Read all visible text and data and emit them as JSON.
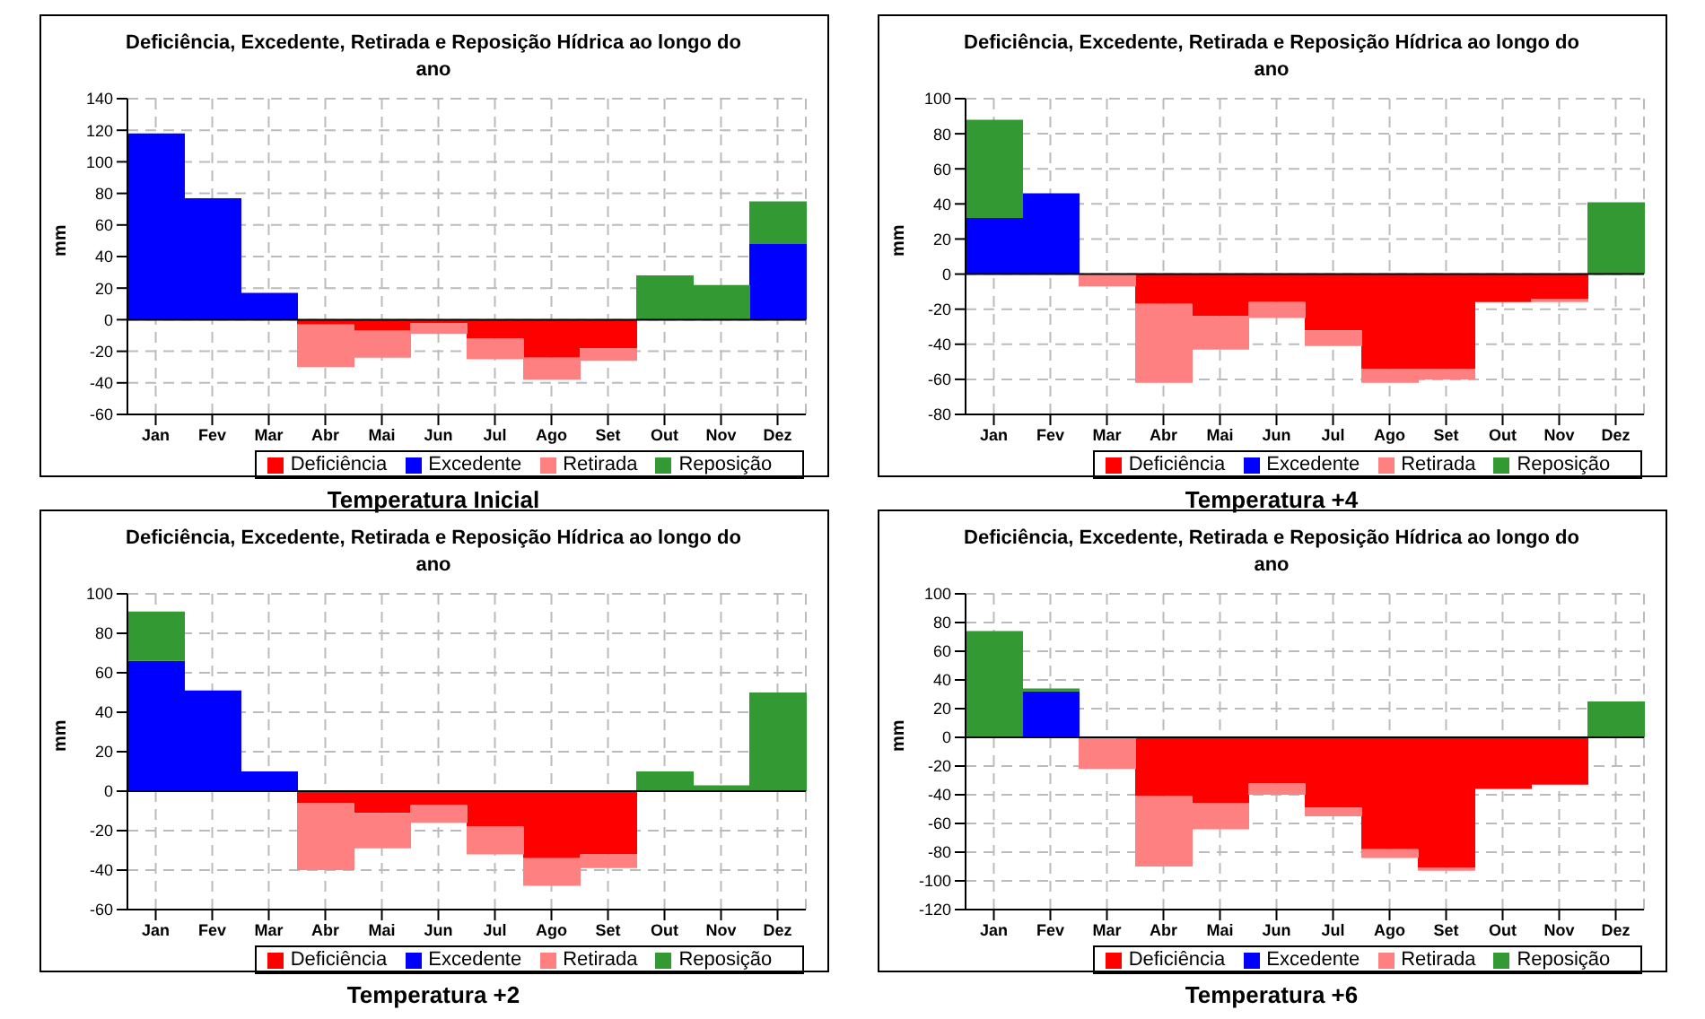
{
  "chart_data": [
    {
      "type": "bar",
      "stacked": true,
      "title": "Deficiência, Excedente, Retirada e Reposição Hídrica ao longo do ano",
      "ylabel": "mm",
      "categories": [
        "Jan",
        "Fev",
        "Mar",
        "Abr",
        "Mai",
        "Jun",
        "Jul",
        "Ago",
        "Set",
        "Out",
        "Nov",
        "Dez"
      ],
      "series": [
        {
          "name": "Deficiência",
          "color": "#ff0000",
          "values": [
            null,
            null,
            null,
            -3,
            -7,
            -2,
            -12,
            -24,
            -18,
            null,
            null,
            null
          ]
        },
        {
          "name": "Excedente",
          "color": "#0000ff",
          "values": [
            118,
            77,
            17,
            null,
            null,
            null,
            null,
            null,
            null,
            null,
            null,
            48
          ]
        },
        {
          "name": "Retirada",
          "color": "#ff8080",
          "values": [
            null,
            null,
            null,
            -27,
            -17,
            -7,
            -13,
            -14,
            -8,
            null,
            null,
            null
          ]
        },
        {
          "name": "Reposição",
          "color": "#339933",
          "values": [
            null,
            null,
            null,
            null,
            null,
            null,
            null,
            null,
            null,
            28,
            22,
            27
          ]
        }
      ],
      "ylim": [
        -60,
        140
      ],
      "yticks": [
        -60,
        -40,
        -20,
        0,
        20,
        40,
        60,
        80,
        100,
        120,
        140
      ],
      "grid": true,
      "legend": "bottom",
      "annotations": [
        "Temperatura Inicial"
      ]
    },
    {
      "type": "bar",
      "stacked": true,
      "title": "Deficiência, Excedente, Retirada e Reposição Hídrica ao longo do ano",
      "ylabel": "mm",
      "categories": [
        "Jan",
        "Fev",
        "Mar",
        "Abr",
        "Mai",
        "Jun",
        "Jul",
        "Ago",
        "Set",
        "Out",
        "Nov",
        "Dez"
      ],
      "series": [
        {
          "name": "Deficiência",
          "color": "#ff0000",
          "values": [
            null,
            null,
            null,
            -17,
            -24,
            -16,
            -32,
            -54,
            -54,
            -16,
            -14,
            null
          ]
        },
        {
          "name": "Excedente",
          "color": "#0000ff",
          "values": [
            32,
            46,
            null,
            null,
            null,
            null,
            null,
            null,
            null,
            null,
            null,
            null
          ]
        },
        {
          "name": "Retirada",
          "color": "#ff8080",
          "values": [
            null,
            null,
            -7,
            -45,
            -19,
            -9,
            -9,
            -8,
            -6,
            null,
            -2,
            null
          ]
        },
        {
          "name": "Reposição",
          "color": "#339933",
          "values": [
            56,
            null,
            null,
            null,
            null,
            null,
            null,
            null,
            null,
            null,
            null,
            41
          ]
        }
      ],
      "ylim": [
        -80,
        100
      ],
      "yticks": [
        -80,
        -60,
        -40,
        -20,
        0,
        20,
        40,
        60,
        80,
        100
      ],
      "grid": true,
      "legend": "bottom",
      "annotations": [
        "Temperatura +4"
      ]
    },
    {
      "type": "bar",
      "stacked": true,
      "title": "Deficiência, Excedente, Retirada e Reposição Hídrica ao longo do ano",
      "ylabel": "mm",
      "categories": [
        "Jan",
        "Fev",
        "Mar",
        "Abr",
        "Mai",
        "Jun",
        "Jul",
        "Ago",
        "Set",
        "Out",
        "Nov",
        "Dez"
      ],
      "series": [
        {
          "name": "Deficiência",
          "color": "#ff0000",
          "values": [
            null,
            null,
            null,
            -6,
            -11,
            -7,
            -18,
            -34,
            -32,
            null,
            null,
            null
          ]
        },
        {
          "name": "Excedente",
          "color": "#0000ff",
          "values": [
            66,
            51,
            10,
            null,
            null,
            null,
            null,
            null,
            null,
            null,
            null,
            null
          ]
        },
        {
          "name": "Retirada",
          "color": "#ff8080",
          "values": [
            null,
            null,
            null,
            -34,
            -18,
            -9,
            -14,
            -14,
            -7,
            null,
            null,
            null
          ]
        },
        {
          "name": "Reposição",
          "color": "#339933",
          "values": [
            25,
            null,
            null,
            null,
            null,
            null,
            null,
            null,
            null,
            10,
            3,
            50
          ]
        }
      ],
      "ylim": [
        -60,
        100
      ],
      "yticks": [
        -60,
        -40,
        -20,
        0,
        20,
        40,
        60,
        80,
        100
      ],
      "grid": true,
      "legend": "bottom",
      "annotations": [
        "Temperatura +2"
      ]
    },
    {
      "type": "bar",
      "stacked": true,
      "title": "Deficiência, Excedente, Retirada e Reposição Hídrica ao longo do ano",
      "ylabel": "mm",
      "categories": [
        "Jan",
        "Fev",
        "Mar",
        "Abr",
        "Mai",
        "Jun",
        "Jul",
        "Ago",
        "Set",
        "Out",
        "Nov",
        "Dez"
      ],
      "series": [
        {
          "name": "Deficiência",
          "color": "#ff0000",
          "values": [
            null,
            null,
            null,
            -41,
            -46,
            -32,
            -49,
            -78,
            -91,
            -36,
            -33,
            null
          ]
        },
        {
          "name": "Excedente",
          "color": "#0000ff",
          "values": [
            null,
            32,
            null,
            null,
            null,
            null,
            null,
            null,
            null,
            null,
            null,
            null
          ]
        },
        {
          "name": "Retirada",
          "color": "#ff8080",
          "values": [
            null,
            null,
            -22,
            -49,
            -18,
            -8,
            -6,
            -6,
            -2,
            null,
            null,
            null
          ]
        },
        {
          "name": "Reposição",
          "color": "#339933",
          "values": [
            74,
            2,
            null,
            null,
            null,
            null,
            null,
            null,
            null,
            null,
            null,
            25
          ]
        }
      ],
      "ylim": [
        -120,
        100
      ],
      "yticks": [
        -120,
        -100,
        -80,
        -60,
        -40,
        -20,
        0,
        20,
        40,
        60,
        80,
        100
      ],
      "grid": true,
      "legend": "bottom",
      "annotations": [
        "Temperatura +6"
      ]
    }
  ]
}
